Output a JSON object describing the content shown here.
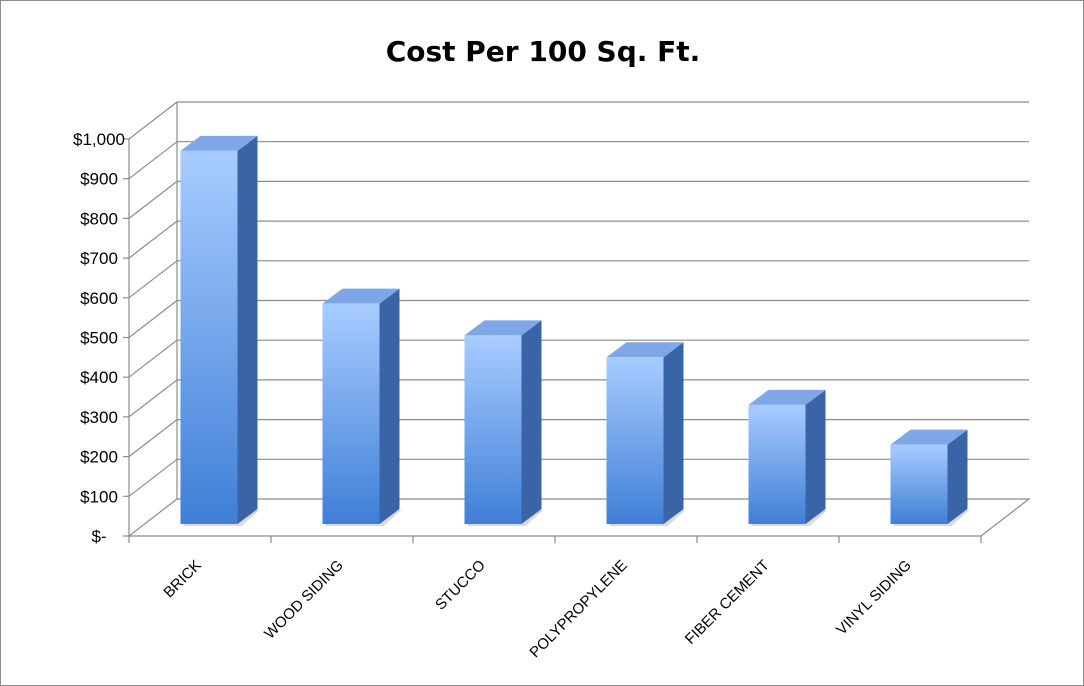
{
  "chart_data": {
    "type": "bar",
    "title": "Cost Per 100 Sq. Ft.",
    "xlabel": "",
    "ylabel": "",
    "categories": [
      "BRICK",
      "WOOD SIDING",
      "STUCCO",
      "POLYPROPYLENE",
      "FIBER CEMENT",
      "VINYL SIDING"
    ],
    "values": [
      940,
      555,
      475,
      420,
      300,
      200
    ],
    "ylim": [
      0,
      1000
    ],
    "yticks": [
      0,
      100,
      200,
      300,
      400,
      500,
      600,
      700,
      800,
      900,
      1000
    ],
    "ytick_labels": [
      "$-",
      "$100",
      "$200",
      "$300",
      "$400",
      "$500",
      "$600",
      "$700",
      "$800",
      "$900",
      "$1,000"
    ],
    "grid": true,
    "legend": "none",
    "style": "3d-column",
    "colors": {
      "bar_light": "#a8ccff",
      "bar_dark": "#3f7fd6",
      "bar_side": "#3a64a8",
      "bar_top": "#7fa6e6",
      "grid": "#8c8c8c"
    }
  }
}
